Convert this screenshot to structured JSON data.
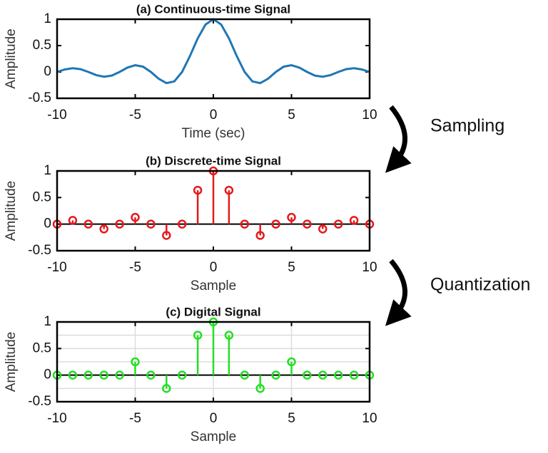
{
  "chart_data": [
    {
      "type": "line",
      "title": "(a) Continuous-time Signal",
      "x_label": "Time (sec)",
      "y_label": "Amplitude",
      "x": [
        -10,
        -9.5,
        -9,
        -8.5,
        -8,
        -7.5,
        -7,
        -6.5,
        -6,
        -5.5,
        -5,
        -4.5,
        -4,
        -3.5,
        -3,
        -2.5,
        -2,
        -1.5,
        -1,
        -0.5,
        0,
        0.5,
        1,
        1.5,
        2,
        2.5,
        3,
        3.5,
        4,
        4.5,
        5,
        5.5,
        6,
        6.5,
        7,
        7.5,
        8,
        8.5,
        9,
        9.5,
        10
      ],
      "values": [
        0,
        0.0474,
        0.0707,
        0.053,
        0,
        -0.06,
        -0.0909,
        -0.0693,
        0,
        0.0818,
        0.1273,
        0.1,
        0,
        -0.1286,
        -0.2122,
        -0.1801,
        0,
        0.3001,
        0.6366,
        0.9003,
        1,
        0.9003,
        0.6366,
        0.3001,
        0,
        -0.1801,
        -0.2122,
        -0.1286,
        0,
        0.1,
        0.1273,
        0.0818,
        0,
        -0.0693,
        -0.0909,
        -0.06,
        0,
        0.053,
        0.0707,
        0.0474,
        0
      ],
      "color": "#1f77b4",
      "xlim": [
        -10,
        10
      ],
      "ylim": [
        -0.5,
        1
      ],
      "xticks": [
        -10,
        -5,
        0,
        5,
        10
      ],
      "yticks": [
        -0.5,
        0,
        0.5,
        1
      ],
      "grid": false
    },
    {
      "type": "stem",
      "title": "(b) Discrete-time Signal",
      "x_label": "Sample",
      "y_label": "Amplitude",
      "x": [
        -10,
        -9,
        -8,
        -7,
        -6,
        -5,
        -4,
        -3,
        -2,
        -1,
        0,
        1,
        2,
        3,
        4,
        5,
        6,
        7,
        8,
        9,
        10
      ],
      "values": [
        0,
        0.0707,
        0,
        -0.0909,
        0,
        0.1273,
        0,
        -0.2122,
        0,
        0.6366,
        1,
        0.6366,
        0,
        -0.2122,
        0,
        0.1273,
        0,
        -0.0909,
        0,
        0.0707,
        0
      ],
      "color": "#e41a1c",
      "xlim": [
        -10,
        10
      ],
      "ylim": [
        -0.5,
        1
      ],
      "xticks": [
        -10,
        -5,
        0,
        5,
        10
      ],
      "yticks": [
        -0.5,
        0,
        0.5,
        1
      ],
      "grid": false
    },
    {
      "type": "stem",
      "title": "(c) Digital Signal",
      "x_label": "Sample",
      "y_label": "Amplitude",
      "x": [
        -10,
        -9,
        -8,
        -7,
        -6,
        -5,
        -4,
        -3,
        -2,
        -1,
        0,
        1,
        2,
        3,
        4,
        5,
        6,
        7,
        8,
        9,
        10
      ],
      "values": [
        0,
        0,
        0,
        0,
        0,
        0.25,
        0,
        -0.25,
        0,
        0.75,
        1,
        0.75,
        0,
        -0.25,
        0,
        0.25,
        0,
        0,
        0,
        0,
        0
      ],
      "color": "#22e022",
      "xlim": [
        -10,
        10
      ],
      "ylim": [
        -0.5,
        1
      ],
      "xticks": [
        -10,
        -5,
        0,
        5,
        10
      ],
      "yticks": [
        -0.5,
        0,
        0.5,
        1
      ],
      "y_minor_ticks": [
        -0.25,
        0.25,
        0.75
      ],
      "grid": true
    }
  ],
  "annotations": [
    "Sampling",
    "Quantization"
  ]
}
